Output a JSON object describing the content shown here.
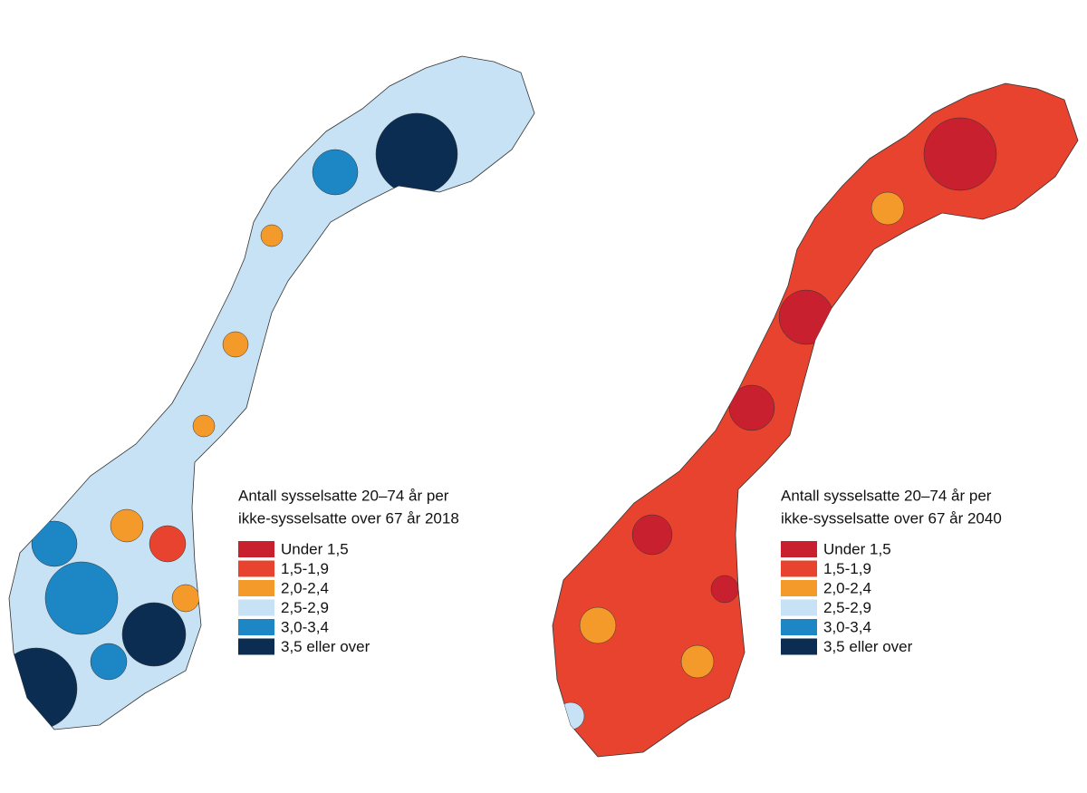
{
  "maps": [
    {
      "legend": {
        "title_lines": [
          "Antall sysselsatte 20–74 år per",
          "ikke-sysselsatte over 67 år 2018"
        ],
        "classes": [
          {
            "label": "Under 1,5",
            "color": "#c8202e"
          },
          {
            "label": "1,5-1,9",
            "color": "#e8432e"
          },
          {
            "label": "2,0-2,4",
            "color": "#f39a2a"
          },
          {
            "label": "2,5-2,9",
            "color": "#c7e2f4"
          },
          {
            "label": "3,0-3,4",
            "color": "#1d87c5"
          },
          {
            "label": "3,5 eller over",
            "color": "#0b2d52"
          }
        ]
      }
    },
    {
      "legend": {
        "title_lines": [
          "Antall sysselsatte 20–74 år per",
          "ikke-sysselsatte over 67 år 2040"
        ],
        "classes": [
          {
            "label": "Under 1,5",
            "color": "#c8202e"
          },
          {
            "label": "1,5-1,9",
            "color": "#e8432e"
          },
          {
            "label": "2,0-2,4",
            "color": "#f39a2a"
          },
          {
            "label": "2,5-2,9",
            "color": "#c7e2f4"
          },
          {
            "label": "3,0-3,4",
            "color": "#1d87c5"
          },
          {
            "label": "3,5 eller over",
            "color": "#0b2d52"
          }
        ]
      }
    }
  ]
}
